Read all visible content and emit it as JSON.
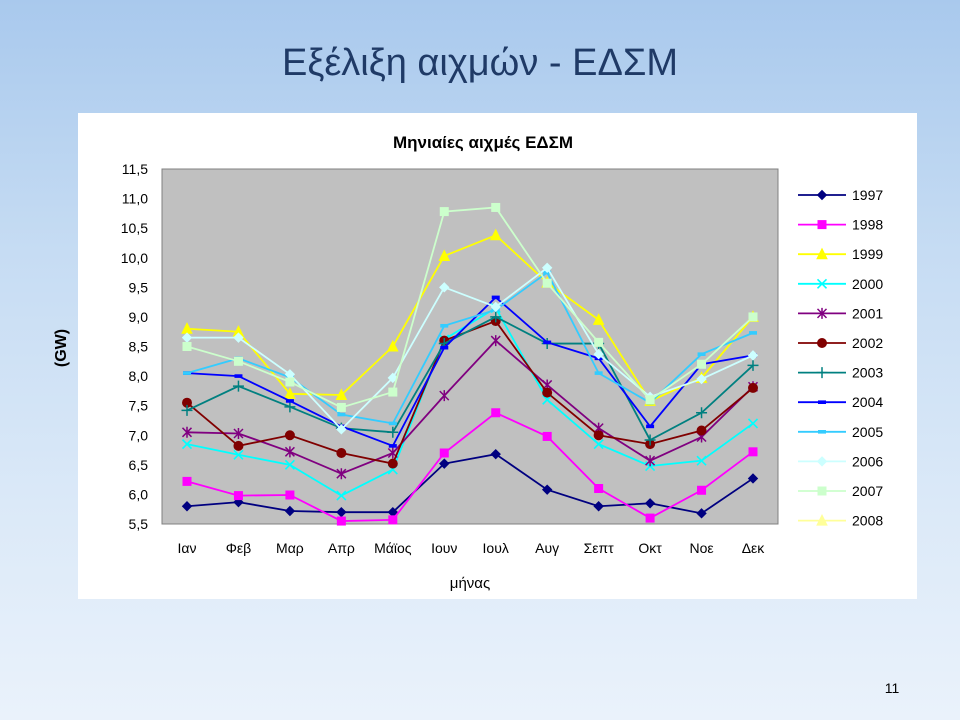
{
  "slide": {
    "title": "Εξέλιξη αιχμών - ΕΔΣΜ",
    "page_number": "11"
  },
  "chart_data": {
    "type": "line",
    "title": "Μηνιαίες αιχμές ΕΔΣΜ",
    "xlabel": "μήνας",
    "ylabel": "(GW)",
    "ylim": [
      5.5,
      11.5
    ],
    "yticks": [
      "5,5",
      "6,0",
      "6,5",
      "7,0",
      "7,5",
      "8,0",
      "8,5",
      "9,0",
      "9,5",
      "10,0",
      "10,5",
      "11,0",
      "11,5"
    ],
    "categories": [
      "Ιαν",
      "Φεβ",
      "Μαρ",
      "Απρ",
      "Μάϊος",
      "Ιουν",
      "Ιουλ",
      "Αυγ",
      "Σεπτ",
      "Οκτ",
      "Νοε",
      "Δεκ"
    ],
    "grid": false,
    "legend_position": "right",
    "plot_background": "#c0c0c0",
    "series": [
      {
        "name": "1997",
        "color": "#000080",
        "marker": "diamond",
        "values": [
          5.8,
          5.87,
          5.72,
          5.7,
          5.7,
          6.52,
          6.68,
          6.08,
          5.8,
          5.85,
          5.68,
          6.27
        ]
      },
      {
        "name": "1998",
        "color": "#ff00ff",
        "marker": "square",
        "values": [
          6.22,
          5.98,
          5.99,
          5.55,
          5.57,
          6.7,
          7.38,
          6.98,
          6.1,
          5.6,
          6.07,
          6.72
        ]
      },
      {
        "name": "1999",
        "color": "#ffff00",
        "marker": "triangle",
        "values": [
          8.8,
          8.75,
          7.7,
          7.68,
          8.5,
          10.03,
          10.38,
          9.58,
          8.95,
          7.58,
          7.97,
          9.0
        ]
      },
      {
        "name": "2000",
        "color": "#00ffff",
        "marker": "x",
        "values": [
          6.85,
          6.67,
          6.5,
          5.98,
          6.42,
          8.62,
          9.15,
          7.6,
          6.85,
          6.48,
          6.57,
          7.2
        ]
      },
      {
        "name": "2001",
        "color": "#800080",
        "marker": "asterisk",
        "values": [
          7.05,
          7.03,
          6.72,
          6.35,
          6.7,
          7.67,
          8.6,
          7.85,
          7.12,
          6.57,
          6.97,
          7.82
        ]
      },
      {
        "name": "2002",
        "color": "#800000",
        "marker": "circle",
        "values": [
          7.55,
          6.82,
          7.0,
          6.7,
          6.52,
          8.6,
          8.93,
          7.72,
          7.0,
          6.85,
          7.08,
          7.8
        ]
      },
      {
        "name": "2003",
        "color": "#008080",
        "marker": "plus",
        "values": [
          7.42,
          7.83,
          7.48,
          7.12,
          7.05,
          8.55,
          9.0,
          8.55,
          8.55,
          6.92,
          7.38,
          8.18
        ]
      },
      {
        "name": "2004",
        "color": "#0000ff",
        "marker": "dash",
        "values": [
          8.05,
          8.0,
          7.58,
          7.15,
          6.82,
          8.48,
          9.33,
          8.57,
          8.3,
          7.15,
          8.2,
          8.35
        ]
      },
      {
        "name": "2005",
        "color": "#33ccff",
        "marker": "dash",
        "values": [
          8.05,
          8.3,
          7.98,
          7.35,
          7.2,
          8.85,
          9.12,
          9.75,
          8.05,
          7.55,
          8.37,
          8.73
        ]
      },
      {
        "name": "2006",
        "color": "#ccffff",
        "marker": "diamond",
        "values": [
          8.65,
          8.65,
          8.03,
          7.1,
          7.97,
          9.5,
          9.17,
          9.83,
          8.37,
          7.65,
          7.95,
          8.35
        ]
      },
      {
        "name": "2007",
        "color": "#ccffcc",
        "marker": "square",
        "values": [
          8.5,
          8.25,
          7.9,
          7.47,
          7.73,
          10.78,
          10.85,
          9.57,
          8.57,
          7.6,
          8.2,
          9.0
        ]
      },
      {
        "name": "2008",
        "color": "#ffff99",
        "marker": "triangle",
        "values": [
          null,
          null,
          null,
          null,
          null,
          null,
          null,
          null,
          null,
          null,
          null,
          null
        ]
      }
    ]
  }
}
